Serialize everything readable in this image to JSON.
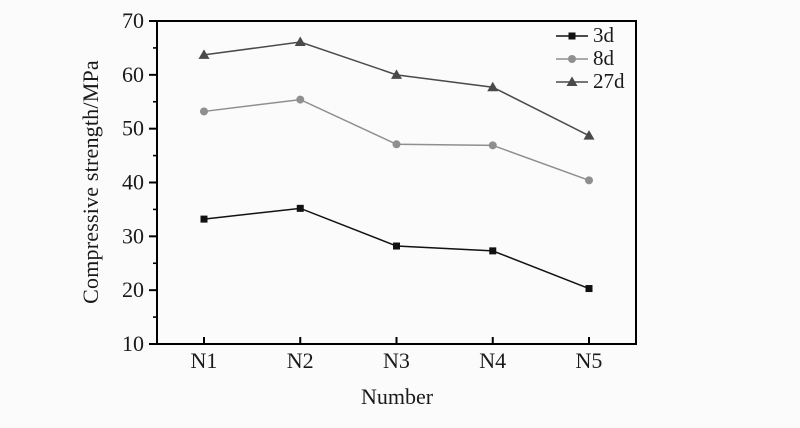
{
  "figure": {
    "background_color": "#fbfbfb",
    "frame_color": "#000000",
    "text_color": "#1a1a1a"
  },
  "chart_data": {
    "type": "line",
    "title": "",
    "xlabel": "Number",
    "ylabel": "Compressive strength/MPa",
    "categories": [
      "N1",
      "N2",
      "N3",
      "N4",
      "N5"
    ],
    "ylim": [
      10,
      70
    ],
    "yticks": [
      10,
      20,
      30,
      40,
      50,
      60,
      70
    ],
    "y_minor_ticks": [
      15,
      25,
      35,
      45,
      55,
      65
    ],
    "grid": "off",
    "legend_position": "top-right-inside",
    "series": [
      {
        "name": "3d",
        "marker": "square",
        "color": "#111111",
        "values": [
          33.2,
          35.2,
          28.2,
          27.3,
          20.3
        ]
      },
      {
        "name": "8d",
        "marker": "circle",
        "color": "#8f8f8f",
        "values": [
          53.2,
          55.4,
          47.1,
          46.9,
          40.4
        ]
      },
      {
        "name": "27d",
        "marker": "triangle",
        "color": "#4a4a4a",
        "values": [
          63.7,
          66.1,
          60.0,
          57.7,
          48.7
        ]
      }
    ]
  }
}
